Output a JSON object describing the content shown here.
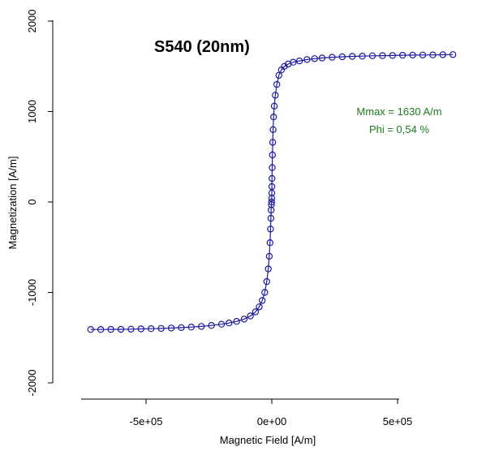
{
  "chart_data": {
    "type": "scatter",
    "title": "S540 (20nm)",
    "xlabel": "Magnetic Field [A/m]",
    "ylabel": "Magnetization [A/m]",
    "xlim": [
      -850000,
      850000
    ],
    "ylim": [
      -2150000,
      2150000
    ],
    "ylim_units": [
      -2150,
      2150
    ],
    "xticks": [
      -500000,
      0,
      500000
    ],
    "xtick_labels": [
      "-5e+05",
      "0e+00",
      "5e+05"
    ],
    "yticks": [
      -2000,
      -1000,
      0,
      1000,
      2000
    ],
    "ytick_labels": [
      "-2000",
      "-1000",
      "0",
      "1000",
      "2000"
    ],
    "grid": false,
    "series_color": "#1c1c9c",
    "annotation_color": "#1e7a1e",
    "annotations": [
      "Mmax = 1630 A/m",
      "Phi = 0,54 %"
    ],
    "series": [
      {
        "x": [
          -720000,
          -680000,
          -640000,
          -600000,
          -560000,
          -520000,
          -480000,
          -440000,
          -400000,
          -360000,
          -320000,
          -280000,
          -240000,
          -200000,
          -170000,
          -140000,
          -110000,
          -85000,
          -65000,
          -50000,
          -38000,
          -28000,
          -20000,
          -14000,
          -10000,
          -7000,
          -5000,
          -3500,
          -2500,
          -1500,
          -800,
          -300,
          0,
          300,
          800,
          1500,
          2500,
          3500,
          5000,
          7000,
          10000,
          14000,
          20000,
          28000,
          38000,
          50000,
          65000,
          85000,
          110000,
          140000,
          170000,
          200000,
          240000,
          280000,
          320000,
          360000,
          400000,
          440000,
          480000,
          520000,
          560000,
          600000,
          640000,
          680000,
          720000
        ],
        "y": [
          -1410,
          -1410,
          -1409,
          -1408,
          -1406,
          -1404,
          -1401,
          -1398,
          -1394,
          -1389,
          -1383,
          -1376,
          -1365,
          -1352,
          -1338,
          -1320,
          -1295,
          -1260,
          -1215,
          -1160,
          -1090,
          -1000,
          -880,
          -740,
          -600,
          -450,
          -300,
          -180,
          -90,
          -30,
          0,
          40,
          100,
          170,
          260,
          380,
          520,
          660,
          800,
          940,
          1060,
          1180,
          1300,
          1400,
          1460,
          1500,
          1525,
          1545,
          1560,
          1575,
          1585,
          1592,
          1600,
          1605,
          1610,
          1613,
          1616,
          1618,
          1620,
          1622,
          1624,
          1625,
          1626,
          1628,
          1630
        ]
      }
    ]
  }
}
